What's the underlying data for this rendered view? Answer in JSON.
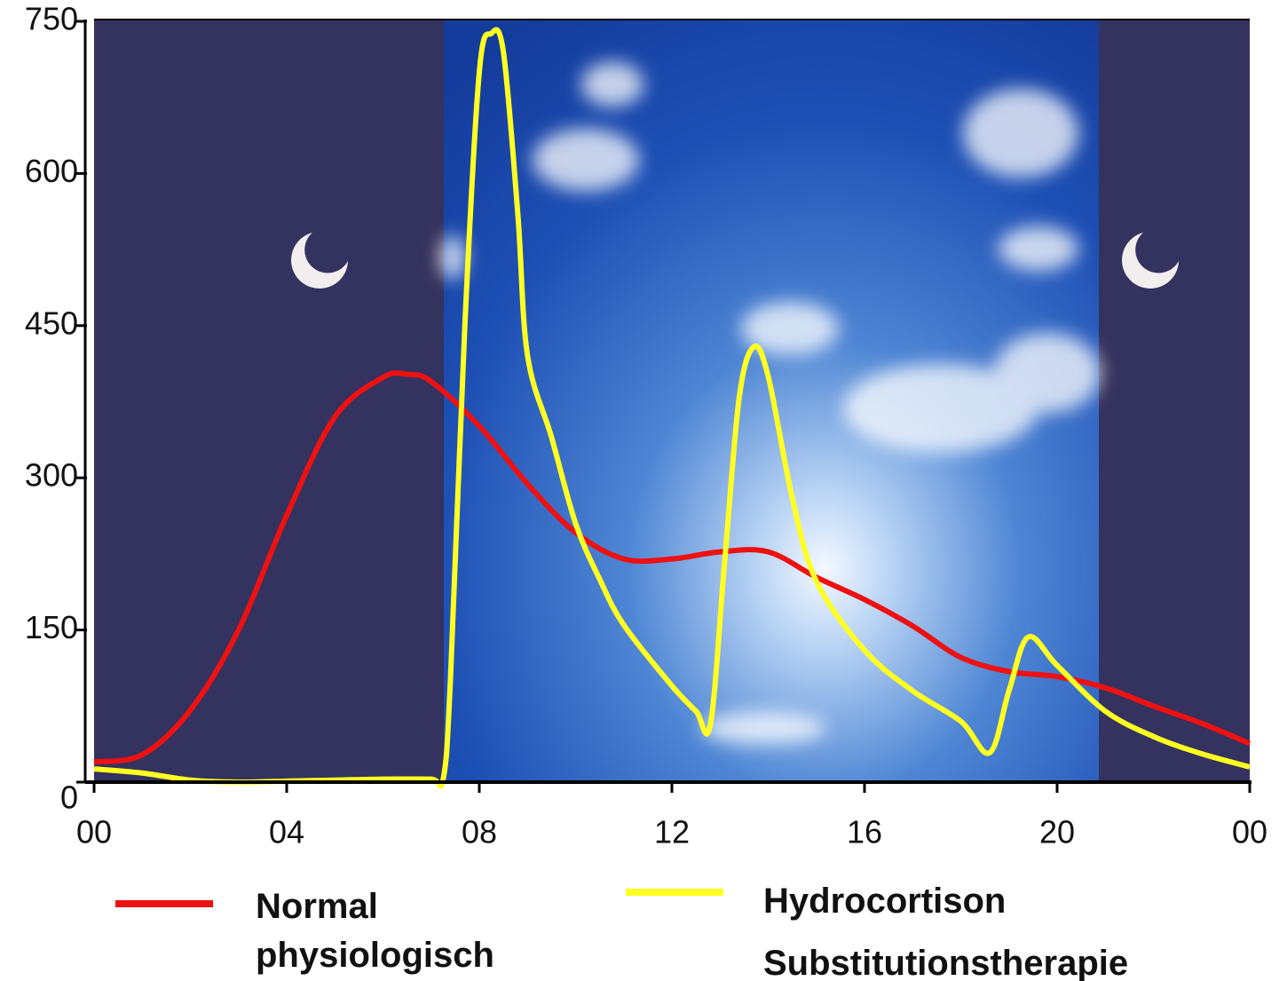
{
  "chart_data": {
    "type": "line",
    "xlim": [
      0,
      24
    ],
    "xticks": [
      {
        "value": 0,
        "label": "00"
      },
      {
        "value": 4,
        "label": "04"
      },
      {
        "value": 8,
        "label": "08"
      },
      12,
      16,
      20,
      {
        "value": 24,
        "label": "00"
      }
    ],
    "ylim": [
      0,
      750
    ],
    "yticks": [
      0,
      150,
      300,
      450,
      600,
      750
    ],
    "series": [
      {
        "name": "Normal physiologisch",
        "color": "#ee1111",
        "x": [
          0,
          1,
          2,
          3,
          4,
          5,
          6,
          6.5,
          7,
          8,
          9,
          10,
          11,
          12,
          13,
          14,
          15,
          16,
          17,
          18,
          19,
          20,
          21,
          22,
          23,
          24
        ],
        "values": [
          20,
          27,
          71,
          150,
          263,
          360,
          399,
          402,
          395,
          351,
          294,
          246,
          220,
          220,
          227,
          227,
          202,
          180,
          154,
          123,
          109,
          104,
          93,
          75,
          58,
          38
        ]
      },
      {
        "name": "Hydrocortison Substitutionstherapie",
        "color": "#ffff22",
        "x": [
          0,
          1,
          2,
          3,
          4,
          5,
          6,
          7,
          7.25,
          7.4,
          7.7,
          8,
          8.25,
          8.5,
          8.8,
          9,
          9.5,
          10,
          10.5,
          11,
          12,
          12.5,
          12.8,
          13.1,
          13.4,
          13.7,
          14,
          14.5,
          15,
          16,
          17,
          18,
          18.6,
          19,
          19.4,
          20,
          21,
          22,
          23,
          24
        ],
        "values": [
          13,
          9,
          2,
          0,
          1,
          2,
          3,
          3,
          3,
          100,
          450,
          700,
          738,
          720,
          560,
          421,
          340,
          255,
          200,
          155,
          95,
          70,
          57,
          220,
          380,
          429,
          400,
          280,
          198,
          130,
          90,
          60,
          29,
          90,
          143,
          115,
          70,
          45,
          28,
          15
        ]
      }
    ]
  }
}
